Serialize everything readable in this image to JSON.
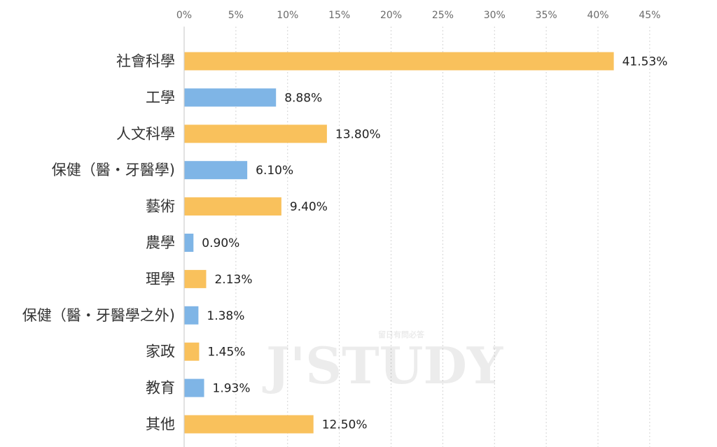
{
  "chart_data": {
    "type": "bar",
    "orientation": "horizontal",
    "xlim": [
      0,
      45
    ],
    "ticks": [
      0,
      5,
      10,
      15,
      20,
      25,
      30,
      35,
      40,
      45
    ],
    "tick_labels": [
      "0%",
      "5%",
      "10%",
      "15%",
      "20%",
      "25%",
      "30%",
      "35%",
      "40%",
      "45%"
    ],
    "grid": true,
    "categories": [
      "社會科學",
      "工學",
      "人文科學",
      "保健（醫・牙醫學)",
      "藝術",
      "農學",
      "理學",
      "保健（醫・牙醫學之外)",
      "家政",
      "教育",
      "其他"
    ],
    "values": [
      41.53,
      8.88,
      13.8,
      6.1,
      9.4,
      0.9,
      2.13,
      1.38,
      1.45,
      1.93,
      12.5
    ],
    "value_labels": [
      "41.53%",
      "8.88%",
      "13.80%",
      "6.10%",
      "9.40%",
      "0.90%",
      "2.13%",
      "1.38%",
      "1.45%",
      "1.93%",
      "12.50%"
    ],
    "colors": {
      "orange": "#F9C15C",
      "blue": "#7FB5E6"
    },
    "bar_colors": [
      "#F9C15C",
      "#7FB5E6",
      "#F9C15C",
      "#7FB5E6",
      "#F9C15C",
      "#7FB5E6",
      "#F9C15C",
      "#7FB5E6",
      "#F9C15C",
      "#7FB5E6",
      "#F9C15C"
    ]
  },
  "watermark": {
    "text": "J'STUDY",
    "subtext": "留日有問必答"
  }
}
